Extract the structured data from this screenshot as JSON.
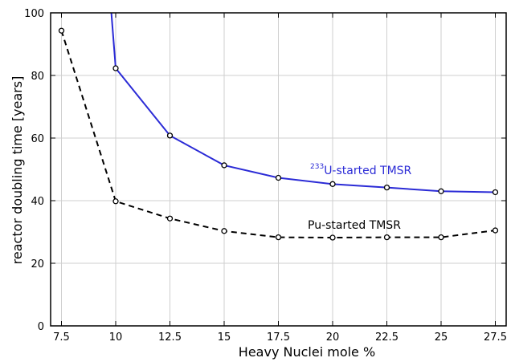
{
  "chart_data": {
    "type": "line",
    "xlabel": "Heavy Nuclei mole %",
    "ylabel": "reactor doubling time [years]",
    "xlim": [
      7.0,
      28.0
    ],
    "ylim": [
      0,
      100
    ],
    "x_ticks": [
      7.5,
      10,
      12.5,
      15,
      17.5,
      20,
      22.5,
      25,
      27.5
    ],
    "x_tick_labels": [
      "7.5",
      "10",
      "12.5",
      "15",
      "17.5",
      "20",
      "22.5",
      "25",
      "27.5"
    ],
    "y_ticks": [
      0,
      20,
      40,
      60,
      80,
      100
    ],
    "y_tick_labels": [
      "0",
      "20",
      "40",
      "60",
      "80",
      "100"
    ],
    "grid": true,
    "series": [
      {
        "name": "U-started TMSR",
        "name_superscript": "233",
        "color": "#2b2bd6",
        "line_style": "solid",
        "x": [
          10,
          12.5,
          15,
          17.5,
          20,
          22.5,
          25,
          27.5
        ],
        "y": [
          82.3,
          60.8,
          51.3,
          47.3,
          45.3,
          44.2,
          43.0,
          42.7
        ],
        "upper_branch": {
          "from": [
            10,
            82.3
          ],
          "to": [
            9.8,
            101
          ]
        }
      },
      {
        "name": "Pu-started TMSR",
        "color": "#000000",
        "line_style": "dashed",
        "x": [
          7.5,
          10,
          12.5,
          15,
          17.5,
          20,
          22.5,
          25,
          27.5
        ],
        "y": [
          94.3,
          39.8,
          34.3,
          30.3,
          28.3,
          28.2,
          28.3,
          28.3,
          30.5
        ]
      }
    ]
  }
}
